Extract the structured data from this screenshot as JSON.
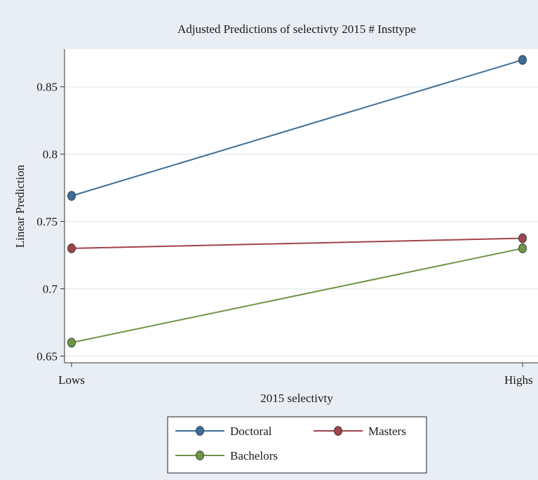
{
  "chart_data": {
    "type": "line",
    "title": "Adjusted Predictions of selectivty 2015 # Insttype",
    "xlabel": "2015 selectivty",
    "ylabel": "Linear Prediction",
    "categories": [
      "Lows",
      "Highs"
    ],
    "ylim": [
      0.645,
      0.878
    ],
    "yticks": [
      0.65,
      0.7,
      0.75,
      0.8,
      0.85
    ],
    "ytick_labels": [
      "0.65",
      "0.7",
      "0.75",
      "0.8",
      "0.85"
    ],
    "grid": true,
    "legend_position": "bottom",
    "series": [
      {
        "name": "Doctoral",
        "values": [
          0.769,
          0.87
        ],
        "color": "#3d6e96"
      },
      {
        "name": "Masters",
        "values": [
          0.73,
          0.7375
        ],
        "color": "#a0444b"
      },
      {
        "name": "Bachelors",
        "values": [
          0.66,
          0.73
        ],
        "color": "#6f9445"
      }
    ]
  },
  "colors": {
    "outer_background": "#e8eef4",
    "plot_background": "#ffffff",
    "grid": "#e6edf3",
    "axis": "#333333"
  }
}
